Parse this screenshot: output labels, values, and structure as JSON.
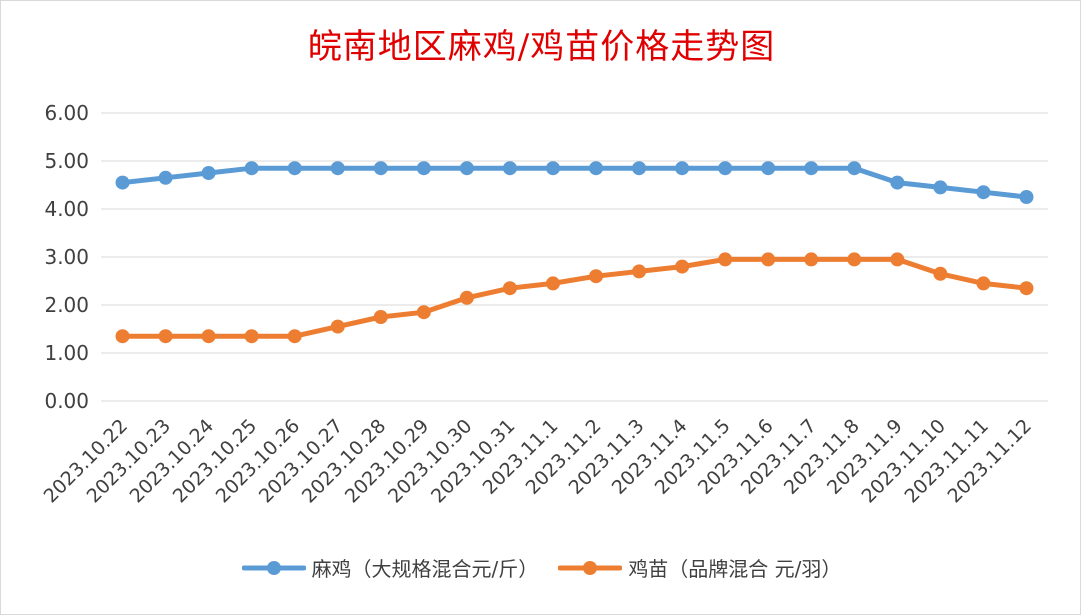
{
  "chart_data": {
    "type": "line",
    "title": "皖南地区麻鸡/鸡苗价格走势图",
    "categories": [
      "2023.10.22",
      "2023.10.23",
      "2023.10.24",
      "2023.10.25",
      "2023.10.26",
      "2023.10.27",
      "2023.10.28",
      "2023.10.29",
      "2023.10.30",
      "2023.10.31",
      "2023.11.1",
      "2023.11.2",
      "2023.11.3",
      "2023.11.4",
      "2023.11.5",
      "2023.11.6",
      "2023.11.7",
      "2023.11.8",
      "2023.11.9",
      "2023.11.10",
      "2023.11.11",
      "2023.11.12"
    ],
    "series": [
      {
        "name": "麻鸡（大规格混合元/斤）",
        "color": "#5b9bd5",
        "values": [
          4.55,
          4.65,
          4.75,
          4.85,
          4.85,
          4.85,
          4.85,
          4.85,
          4.85,
          4.85,
          4.85,
          4.85,
          4.85,
          4.85,
          4.85,
          4.85,
          4.85,
          4.85,
          4.55,
          4.45,
          4.35,
          4.25
        ]
      },
      {
        "name": "鸡苗（品牌混合 元/羽）",
        "color": "#ed7d31",
        "values": [
          1.35,
          1.35,
          1.35,
          1.35,
          1.35,
          1.55,
          1.75,
          1.85,
          2.15,
          2.35,
          2.45,
          2.6,
          2.7,
          2.8,
          2.95,
          2.95,
          2.95,
          2.95,
          2.95,
          2.65,
          2.45,
          2.35
        ]
      }
    ],
    "ylim": [
      0,
      6
    ],
    "y_ticks": [
      "0.00",
      "1.00",
      "2.00",
      "3.00",
      "4.00",
      "5.00",
      "6.00"
    ],
    "xlabel": "",
    "ylabel": "",
    "grid": true,
    "legend_position": "bottom"
  }
}
